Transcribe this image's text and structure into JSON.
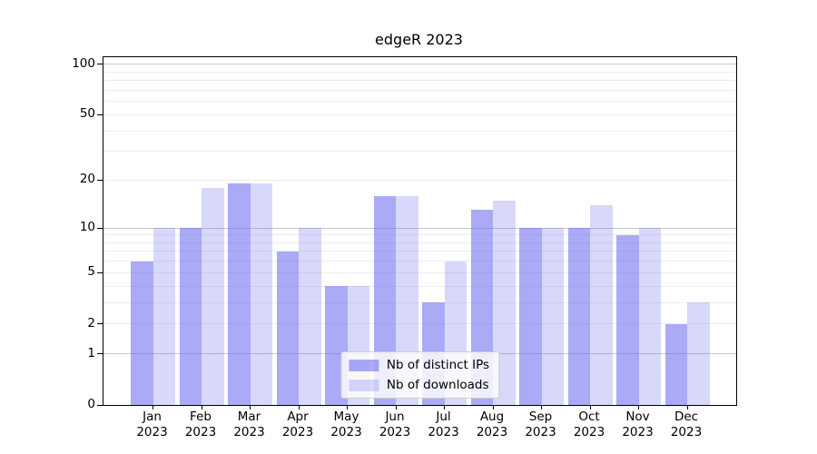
{
  "title": "edgeR 2023",
  "chart_data": {
    "type": "bar",
    "title": "edgeR 2023",
    "categories": [
      "Jan",
      "Feb",
      "Mar",
      "Apr",
      "May",
      "Jun",
      "Jul",
      "Aug",
      "Sep",
      "Oct",
      "Nov",
      "Dec"
    ],
    "category_year": "2023",
    "series": [
      {
        "name": "Nb of distinct IPs",
        "color": "rgba(100,100,238,0.55)",
        "values": [
          6,
          10,
          19,
          7,
          4,
          16,
          3,
          13,
          10,
          10,
          9,
          2
        ]
      },
      {
        "name": "Nb of downloads",
        "color": "rgba(100,100,238,0.25)",
        "values": [
          10,
          18,
          19,
          10,
          4,
          16,
          6,
          15,
          10,
          14,
          10,
          3
        ]
      }
    ],
    "yscale": "log1p",
    "yticks": [
      0,
      1,
      2,
      5,
      10,
      20,
      50,
      100
    ],
    "major_gridlines": [
      1,
      10,
      100
    ],
    "minor_gridlines": [
      2,
      3,
      4,
      5,
      6,
      7,
      8,
      9,
      20,
      30,
      40,
      50,
      60,
      70,
      80,
      90
    ],
    "ylim": [
      0,
      110
    ],
    "grid": true,
    "legend_position": "lower center",
    "colors": {
      "major_grid": "#c9c9c9",
      "minor_grid": "#ededed",
      "spine": "#000000",
      "background": "#ffffff"
    }
  }
}
